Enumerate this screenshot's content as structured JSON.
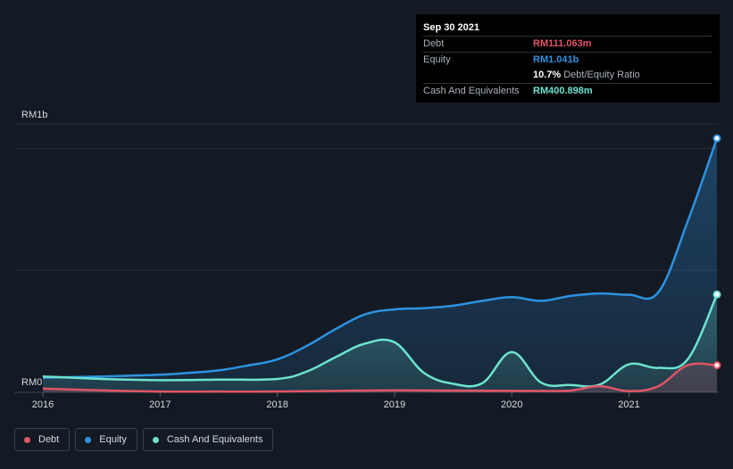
{
  "colors": {
    "debt": "#e05565",
    "equity": "#2d92e0",
    "cash": "#6de3cf",
    "background": "#141a24"
  },
  "tooltip": {
    "date": "Sep 30 2021",
    "debt_label": "Debt",
    "debt_value": "RM111.063m",
    "equity_label": "Equity",
    "equity_value": "RM1.041b",
    "ratio_value": "10.7%",
    "ratio_label": "Debt/Equity Ratio",
    "cash_label": "Cash And Equivalents",
    "cash_value": "RM400.898m"
  },
  "legend": [
    {
      "label": "Debt",
      "color": "#e05565"
    },
    {
      "label": "Equity",
      "color": "#2d92e0"
    },
    {
      "label": "Cash And Equivalents",
      "color": "#6de3cf"
    }
  ],
  "chart_data": {
    "type": "line",
    "title": "",
    "xlabel": "",
    "ylabel": "",
    "y_top_label": "RM1b",
    "y_bottom_label": "RM0",
    "x_ticks": [
      "2016",
      "2017",
      "2018",
      "2019",
      "2020",
      "2021"
    ],
    "xlim": [
      2016.0,
      2021.75
    ],
    "ylim": [
      0,
      1100
    ],
    "grid": true,
    "legend_position": "bottom-left",
    "series": [
      {
        "name": "Debt",
        "color": "#e05565",
        "x": [
          2016.0,
          2016.5,
          2017.0,
          2017.5,
          2018.0,
          2018.5,
          2019.0,
          2019.5,
          2020.0,
          2020.25,
          2020.5,
          2020.75,
          2021.0,
          2021.25,
          2021.5,
          2021.75
        ],
        "y": [
          15,
          8,
          3,
          3,
          3,
          6,
          8,
          7,
          6,
          6,
          7,
          25,
          5,
          25,
          111,
          111
        ]
      },
      {
        "name": "Equity",
        "color": "#2d92e0",
        "x": [
          2016.0,
          2016.5,
          2017.0,
          2017.25,
          2017.5,
          2017.75,
          2018.0,
          2018.25,
          2018.5,
          2018.75,
          2019.0,
          2019.25,
          2019.5,
          2019.75,
          2020.0,
          2020.25,
          2020.5,
          2020.75,
          2021.0,
          2021.25,
          2021.5,
          2021.75
        ],
        "y": [
          60,
          65,
          72,
          80,
          90,
          110,
          135,
          190,
          260,
          320,
          340,
          345,
          355,
          375,
          390,
          375,
          395,
          405,
          400,
          410,
          700,
          1041
        ]
      },
      {
        "name": "Cash And Equivalents",
        "color": "#6de3cf",
        "x": [
          2016.0,
          2016.5,
          2017.0,
          2017.5,
          2018.0,
          2018.25,
          2018.5,
          2018.75,
          2019.0,
          2019.25,
          2019.5,
          2019.75,
          2020.0,
          2020.25,
          2020.5,
          2020.75,
          2021.0,
          2021.25,
          2021.5,
          2021.75
        ],
        "y": [
          65,
          55,
          50,
          52,
          55,
          85,
          145,
          200,
          205,
          80,
          35,
          38,
          165,
          40,
          30,
          32,
          115,
          100,
          135,
          401
        ]
      }
    ]
  }
}
